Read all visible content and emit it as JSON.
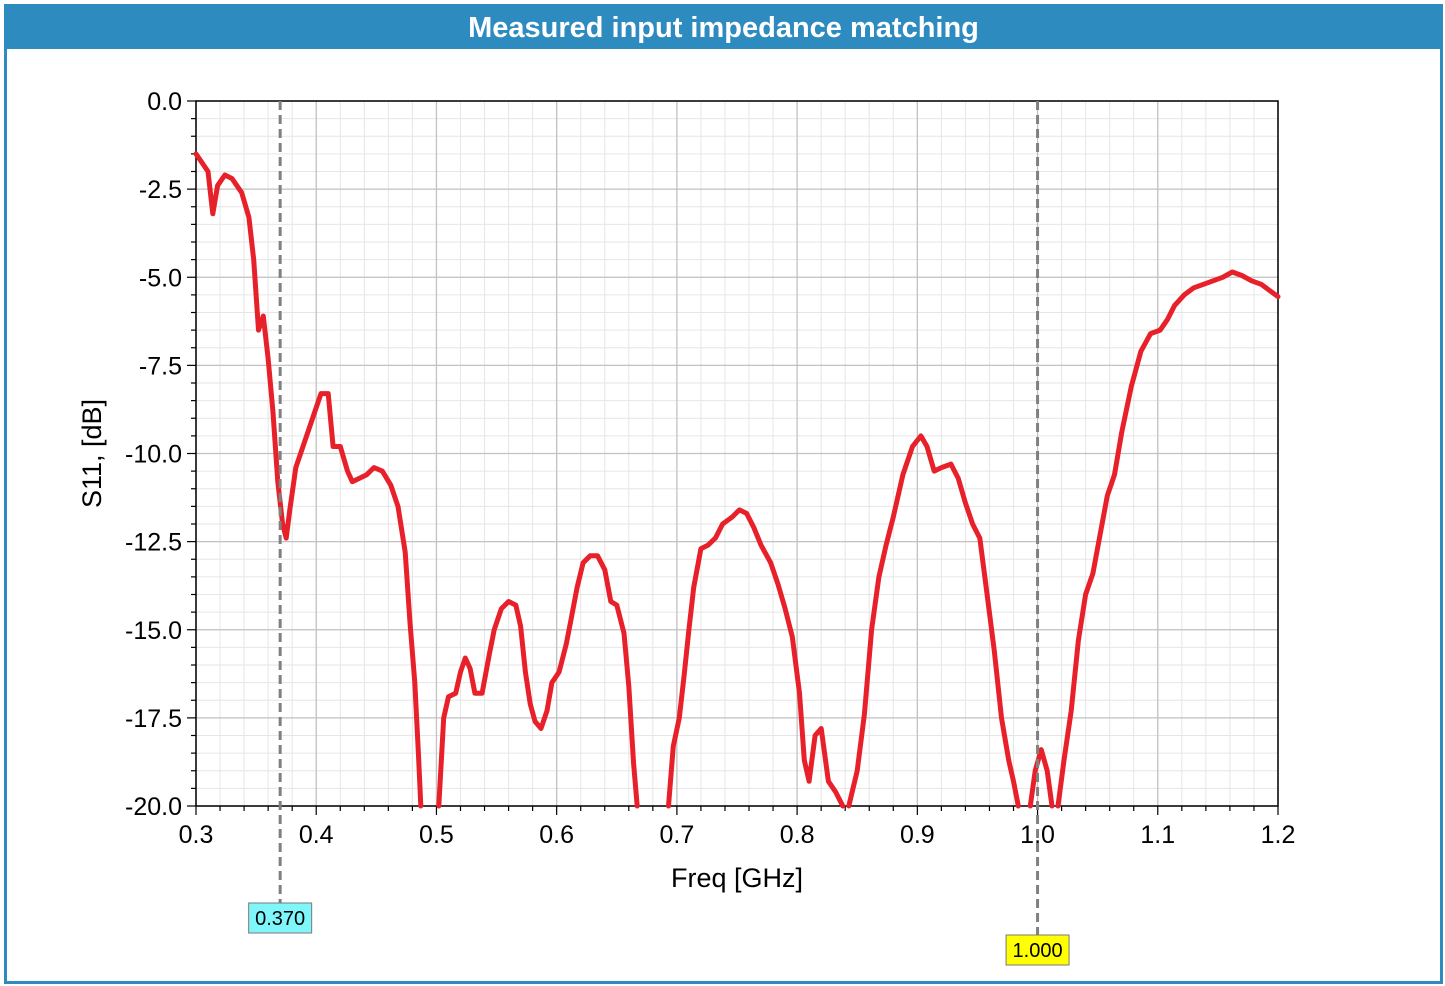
{
  "chart_data": {
    "type": "line",
    "title": "Measured input impedance matching",
    "xlabel": "Freq [GHz]",
    "ylabel": "S11, [dB]",
    "xlim": [
      0.3,
      1.2
    ],
    "ylim": [
      -20.0,
      0.0
    ],
    "x_ticks": [
      "0.3",
      "0.4",
      "0.5",
      "0.6",
      "0.7",
      "0.8",
      "0.9",
      "1.0",
      "1.1",
      "1.2"
    ],
    "y_ticks": [
      "0.0",
      "-2.5",
      "-5.0",
      "-7.5",
      "-10.0",
      "-12.5",
      "-15.0",
      "-17.5",
      "-20.0"
    ],
    "x_tick_values": [
      0.3,
      0.4,
      0.5,
      0.6,
      0.7,
      0.8,
      0.9,
      1.0,
      1.1,
      1.2
    ],
    "y_tick_values": [
      0.0,
      -2.5,
      -5.0,
      -7.5,
      -10.0,
      -12.5,
      -15.0,
      -17.5,
      -20.0
    ],
    "grid": true,
    "series": [
      {
        "name": "S11",
        "color": "#e8202a",
        "segments": [
          [
            [
              0.3,
              -1.5
            ],
            [
              0.31,
              -2.0
            ],
            [
              0.314,
              -3.2
            ],
            [
              0.318,
              -2.4
            ],
            [
              0.324,
              -2.1
            ],
            [
              0.33,
              -2.2
            ],
            [
              0.338,
              -2.6
            ],
            [
              0.344,
              -3.3
            ],
            [
              0.348,
              -4.5
            ],
            [
              0.352,
              -6.5
            ],
            [
              0.356,
              -6.1
            ],
            [
              0.36,
              -7.3
            ],
            [
              0.364,
              -8.8
            ],
            [
              0.368,
              -10.8
            ],
            [
              0.372,
              -12.0
            ],
            [
              0.375,
              -12.4
            ],
            [
              0.378,
              -11.6
            ],
            [
              0.383,
              -10.4
            ],
            [
              0.39,
              -9.7
            ],
            [
              0.398,
              -8.9
            ],
            [
              0.404,
              -8.3
            ],
            [
              0.41,
              -8.3
            ],
            [
              0.414,
              -9.8
            ],
            [
              0.42,
              -9.8
            ],
            [
              0.426,
              -10.5
            ],
            [
              0.43,
              -10.8
            ],
            [
              0.436,
              -10.7
            ],
            [
              0.442,
              -10.6
            ],
            [
              0.448,
              -10.4
            ],
            [
              0.455,
              -10.5
            ],
            [
              0.462,
              -10.9
            ],
            [
              0.468,
              -11.5
            ],
            [
              0.474,
              -12.8
            ],
            [
              0.478,
              -14.8
            ],
            [
              0.482,
              -16.5
            ],
            [
              0.485,
              -18.5
            ],
            [
              0.487,
              -20.0
            ]
          ],
          [
            [
              0.502,
              -20.0
            ],
            [
              0.506,
              -17.5
            ],
            [
              0.51,
              -16.9
            ],
            [
              0.516,
              -16.8
            ],
            [
              0.52,
              -16.2
            ],
            [
              0.524,
              -15.8
            ],
            [
              0.528,
              -16.1
            ],
            [
              0.532,
              -16.8
            ],
            [
              0.538,
              -16.8
            ],
            [
              0.544,
              -15.7
            ],
            [
              0.548,
              -15.0
            ],
            [
              0.554,
              -14.4
            ],
            [
              0.56,
              -14.2
            ],
            [
              0.566,
              -14.3
            ],
            [
              0.57,
              -14.9
            ],
            [
              0.574,
              -16.2
            ],
            [
              0.578,
              -17.1
            ],
            [
              0.582,
              -17.6
            ],
            [
              0.587,
              -17.8
            ],
            [
              0.592,
              -17.3
            ],
            [
              0.596,
              -16.5
            ],
            [
              0.602,
              -16.2
            ],
            [
              0.608,
              -15.4
            ],
            [
              0.612,
              -14.7
            ],
            [
              0.617,
              -13.8
            ],
            [
              0.622,
              -13.1
            ],
            [
              0.628,
              -12.9
            ],
            [
              0.634,
              -12.9
            ],
            [
              0.64,
              -13.3
            ],
            [
              0.645,
              -14.2
            ],
            [
              0.65,
              -14.3
            ],
            [
              0.656,
              -15.1
            ],
            [
              0.66,
              -16.6
            ],
            [
              0.664,
              -18.8
            ],
            [
              0.667,
              -20.0
            ]
          ],
          [
            [
              0.693,
              -20.0
            ],
            [
              0.697,
              -18.3
            ],
            [
              0.702,
              -17.5
            ],
            [
              0.706,
              -16.3
            ],
            [
              0.71,
              -15.0
            ],
            [
              0.714,
              -13.8
            ],
            [
              0.72,
              -12.7
            ],
            [
              0.726,
              -12.6
            ],
            [
              0.732,
              -12.4
            ],
            [
              0.738,
              -12.0
            ],
            [
              0.746,
              -11.8
            ],
            [
              0.752,
              -11.6
            ],
            [
              0.758,
              -11.7
            ],
            [
              0.764,
              -12.1
            ],
            [
              0.77,
              -12.6
            ],
            [
              0.778,
              -13.1
            ],
            [
              0.784,
              -13.7
            ],
            [
              0.79,
              -14.4
            ],
            [
              0.796,
              -15.2
            ],
            [
              0.802,
              -16.8
            ],
            [
              0.806,
              -18.7
            ],
            [
              0.81,
              -19.3
            ],
            [
              0.815,
              -18.0
            ],
            [
              0.82,
              -17.8
            ],
            [
              0.826,
              -19.3
            ],
            [
              0.832,
              -19.6
            ],
            [
              0.838,
              -20.0
            ]
          ],
          [
            [
              0.843,
              -20.0
            ],
            [
              0.85,
              -19.0
            ],
            [
              0.856,
              -17.4
            ],
            [
              0.862,
              -15.0
            ],
            [
              0.868,
              -13.5
            ],
            [
              0.874,
              -12.6
            ],
            [
              0.88,
              -11.8
            ],
            [
              0.888,
              -10.6
            ],
            [
              0.896,
              -9.8
            ],
            [
              0.903,
              -9.5
            ],
            [
              0.908,
              -9.8
            ],
            [
              0.914,
              -10.5
            ],
            [
              0.92,
              -10.4
            ],
            [
              0.928,
              -10.3
            ],
            [
              0.934,
              -10.7
            ],
            [
              0.94,
              -11.4
            ],
            [
              0.946,
              -12.0
            ],
            [
              0.952,
              -12.4
            ],
            [
              0.958,
              -14.0
            ],
            [
              0.964,
              -15.6
            ],
            [
              0.97,
              -17.5
            ],
            [
              0.976,
              -18.7
            ],
            [
              0.98,
              -19.3
            ],
            [
              0.984,
              -20.0
            ]
          ],
          [
            [
              0.994,
              -20.0
            ],
            [
              0.998,
              -19.0
            ],
            [
              1.003,
              -18.4
            ],
            [
              1.008,
              -19.0
            ],
            [
              1.012,
              -20.0
            ]
          ],
          [
            [
              1.017,
              -20.0
            ],
            [
              1.022,
              -18.7
            ],
            [
              1.028,
              -17.3
            ],
            [
              1.034,
              -15.3
            ],
            [
              1.04,
              -14.0
            ],
            [
              1.046,
              -13.4
            ],
            [
              1.052,
              -12.3
            ],
            [
              1.058,
              -11.2
            ],
            [
              1.064,
              -10.6
            ],
            [
              1.07,
              -9.4
            ],
            [
              1.078,
              -8.1
            ],
            [
              1.086,
              -7.1
            ],
            [
              1.094,
              -6.6
            ],
            [
              1.102,
              -6.5
            ],
            [
              1.108,
              -6.2
            ],
            [
              1.114,
              -5.8
            ],
            [
              1.122,
              -5.5
            ],
            [
              1.13,
              -5.3
            ],
            [
              1.138,
              -5.2
            ],
            [
              1.146,
              -5.1
            ],
            [
              1.154,
              -5.0
            ],
            [
              1.162,
              -4.85
            ],
            [
              1.17,
              -4.95
            ],
            [
              1.178,
              -5.1
            ],
            [
              1.186,
              -5.2
            ],
            [
              1.194,
              -5.4
            ],
            [
              1.2,
              -5.55
            ]
          ]
        ]
      }
    ],
    "markers": [
      {
        "x": 0.37,
        "label": "0.370",
        "color": "#7ff7fa",
        "label_row": 1
      },
      {
        "x": 1.0,
        "label": "1.000",
        "color": "#ffff00",
        "label_row": 2
      }
    ]
  }
}
